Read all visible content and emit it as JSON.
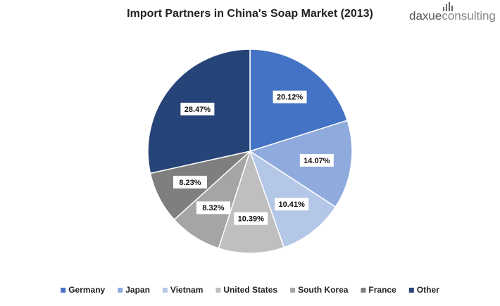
{
  "chart_data": {
    "type": "pie",
    "title": "Import Partners in China's Soap Market (2013)",
    "logo": [
      "daxue",
      "consulting"
    ],
    "categories": [
      "Germany",
      "Japan",
      "Vietnam",
      "United States",
      "South Korea",
      "France",
      "Other"
    ],
    "values": [
      20.12,
      14.07,
      10.41,
      10.39,
      8.32,
      8.23,
      28.47
    ],
    "value_labels": [
      "20.12%",
      "14.07%",
      "10.41%",
      "10.39%",
      "8.32%",
      "8.23%",
      "28.47%"
    ],
    "colors": [
      "#4472c4",
      "#8faadc",
      "#b4c7e7",
      "#bfbfbf",
      "#a5a5a5",
      "#7f7f7f",
      "#264478"
    ],
    "legend": "bottom"
  }
}
